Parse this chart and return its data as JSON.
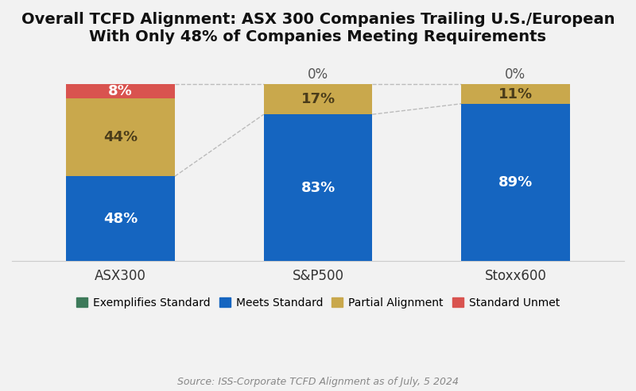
{
  "title": "Overall TCFD Alignment: ASX 300 Companies Trailing U.S./European\nWith Only 48% of Companies Meeting Requirements",
  "categories": [
    "ASX300",
    "S&P500",
    "Stoxx600"
  ],
  "segments": {
    "Exemplifies Standard": [
      0,
      0,
      0
    ],
    "Meets Standard": [
      48,
      83,
      89
    ],
    "Partial Alignment": [
      44,
      17,
      11
    ],
    "Standard Unmet": [
      8,
      0,
      0
    ]
  },
  "labels": {
    "Exemplifies Standard": [
      "",
      "",
      ""
    ],
    "Meets Standard": [
      "48%",
      "83%",
      "89%"
    ],
    "Partial Alignment": [
      "44%",
      "17%",
      "11%"
    ],
    "Standard Unmet": [
      "8%",
      "0%",
      "0%"
    ]
  },
  "label_colors": {
    "Meets Standard": "white",
    "Partial Alignment": "#4a3c1a",
    "Standard Unmet": "white"
  },
  "colors": {
    "Exemplifies Standard": "#3d7a5a",
    "Meets Standard": "#1565c0",
    "Partial Alignment": "#c9a84c",
    "Standard Unmet": "#d9534f"
  },
  "source_text": "Source: ISS-Corporate TCFD Alignment as of July, 5 2024",
  "background_color": "#f2f2f2",
  "bar_width": 0.55,
  "ylim": [
    0,
    115
  ],
  "dashed_line_color": "#bbbbbb",
  "title_fontsize": 14,
  "label_fontsize": 13,
  "legend_fontsize": 10,
  "source_fontsize": 9
}
